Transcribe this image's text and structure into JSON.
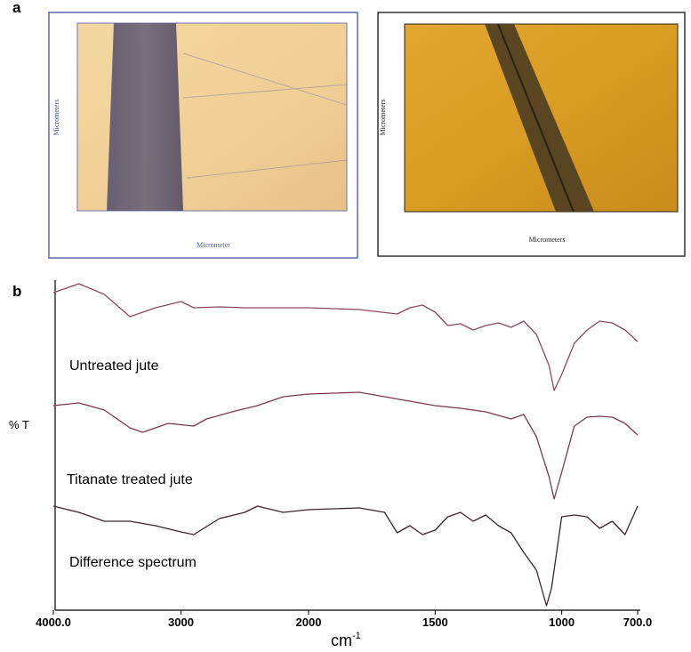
{
  "panel_a": {
    "label": "a",
    "left_image": {
      "y_axis_label": "Micrometers",
      "x_axis_label": "Micrometer"
    },
    "right_image": {
      "y_axis_label": "Micrometers",
      "x_axis_label": "Micrometers"
    }
  },
  "chart_data": {
    "type": "line",
    "panel_label": "b",
    "y_label": "% T",
    "x_label": "cm",
    "x_label_sup": "-1",
    "xlim": [
      4000,
      700
    ],
    "x_scale_break": 2000,
    "xticks": [
      {
        "value": 4000,
        "label": "4000.0"
      },
      3000,
      2000,
      1500,
      1000,
      {
        "value": 700,
        "label": "700.0"
      }
    ],
    "ylim": [
      0,
      370
    ],
    "series": [
      {
        "name": "Untreated jute",
        "color": "#8a4a5c",
        "x": [
          4000,
          3800,
          3600,
          3400,
          3200,
          3000,
          2900,
          2700,
          2500,
          2000,
          1800,
          1650,
          1600,
          1550,
          1500,
          1450,
          1400,
          1350,
          1300,
          1250,
          1200,
          1150,
          1100,
          1050,
          1030,
          1000,
          950,
          900,
          850,
          800,
          750,
          700
        ],
        "values": [
          357,
          367,
          355,
          330,
          340,
          347,
          340,
          341,
          340,
          340,
          338,
          333,
          340,
          343,
          335,
          320,
          322,
          315,
          320,
          323,
          318,
          325,
          310,
          275,
          247,
          265,
          300,
          315,
          325,
          323,
          315,
          302
        ]
      },
      {
        "name": "Titanate treated jute",
        "color": "#7a3a4c",
        "x": [
          4000,
          3800,
          3600,
          3400,
          3300,
          3100,
          2900,
          2800,
          2600,
          2400,
          2200,
          2000,
          1800,
          1600,
          1500,
          1400,
          1300,
          1200,
          1150,
          1100,
          1050,
          1030,
          1000,
          950,
          900,
          850,
          800,
          750,
          700
        ],
        "values": [
          230,
          233,
          225,
          205,
          200,
          210,
          207,
          215,
          223,
          230,
          240,
          243,
          245,
          235,
          230,
          227,
          223,
          215,
          220,
          195,
          150,
          125,
          155,
          207,
          217,
          218,
          217,
          210,
          197
        ]
      },
      {
        "name": "Difference spectrum",
        "color": "#3a2530",
        "x": [
          4000,
          3800,
          3600,
          3400,
          3200,
          3000,
          2900,
          2700,
          2500,
          2400,
          2200,
          2000,
          1800,
          1700,
          1650,
          1600,
          1550,
          1500,
          1450,
          1400,
          1350,
          1300,
          1250,
          1200,
          1150,
          1100,
          1060,
          1040,
          1000,
          950,
          900,
          850,
          800,
          750,
          700
        ],
        "values": [
          117,
          110,
          100,
          100,
          95,
          88,
          85,
          103,
          110,
          117,
          110,
          113,
          115,
          110,
          87,
          95,
          85,
          90,
          105,
          110,
          100,
          107,
          95,
          87,
          65,
          45,
          5,
          25,
          105,
          107,
          105,
          92,
          100,
          85,
          117
        ]
      }
    ]
  }
}
